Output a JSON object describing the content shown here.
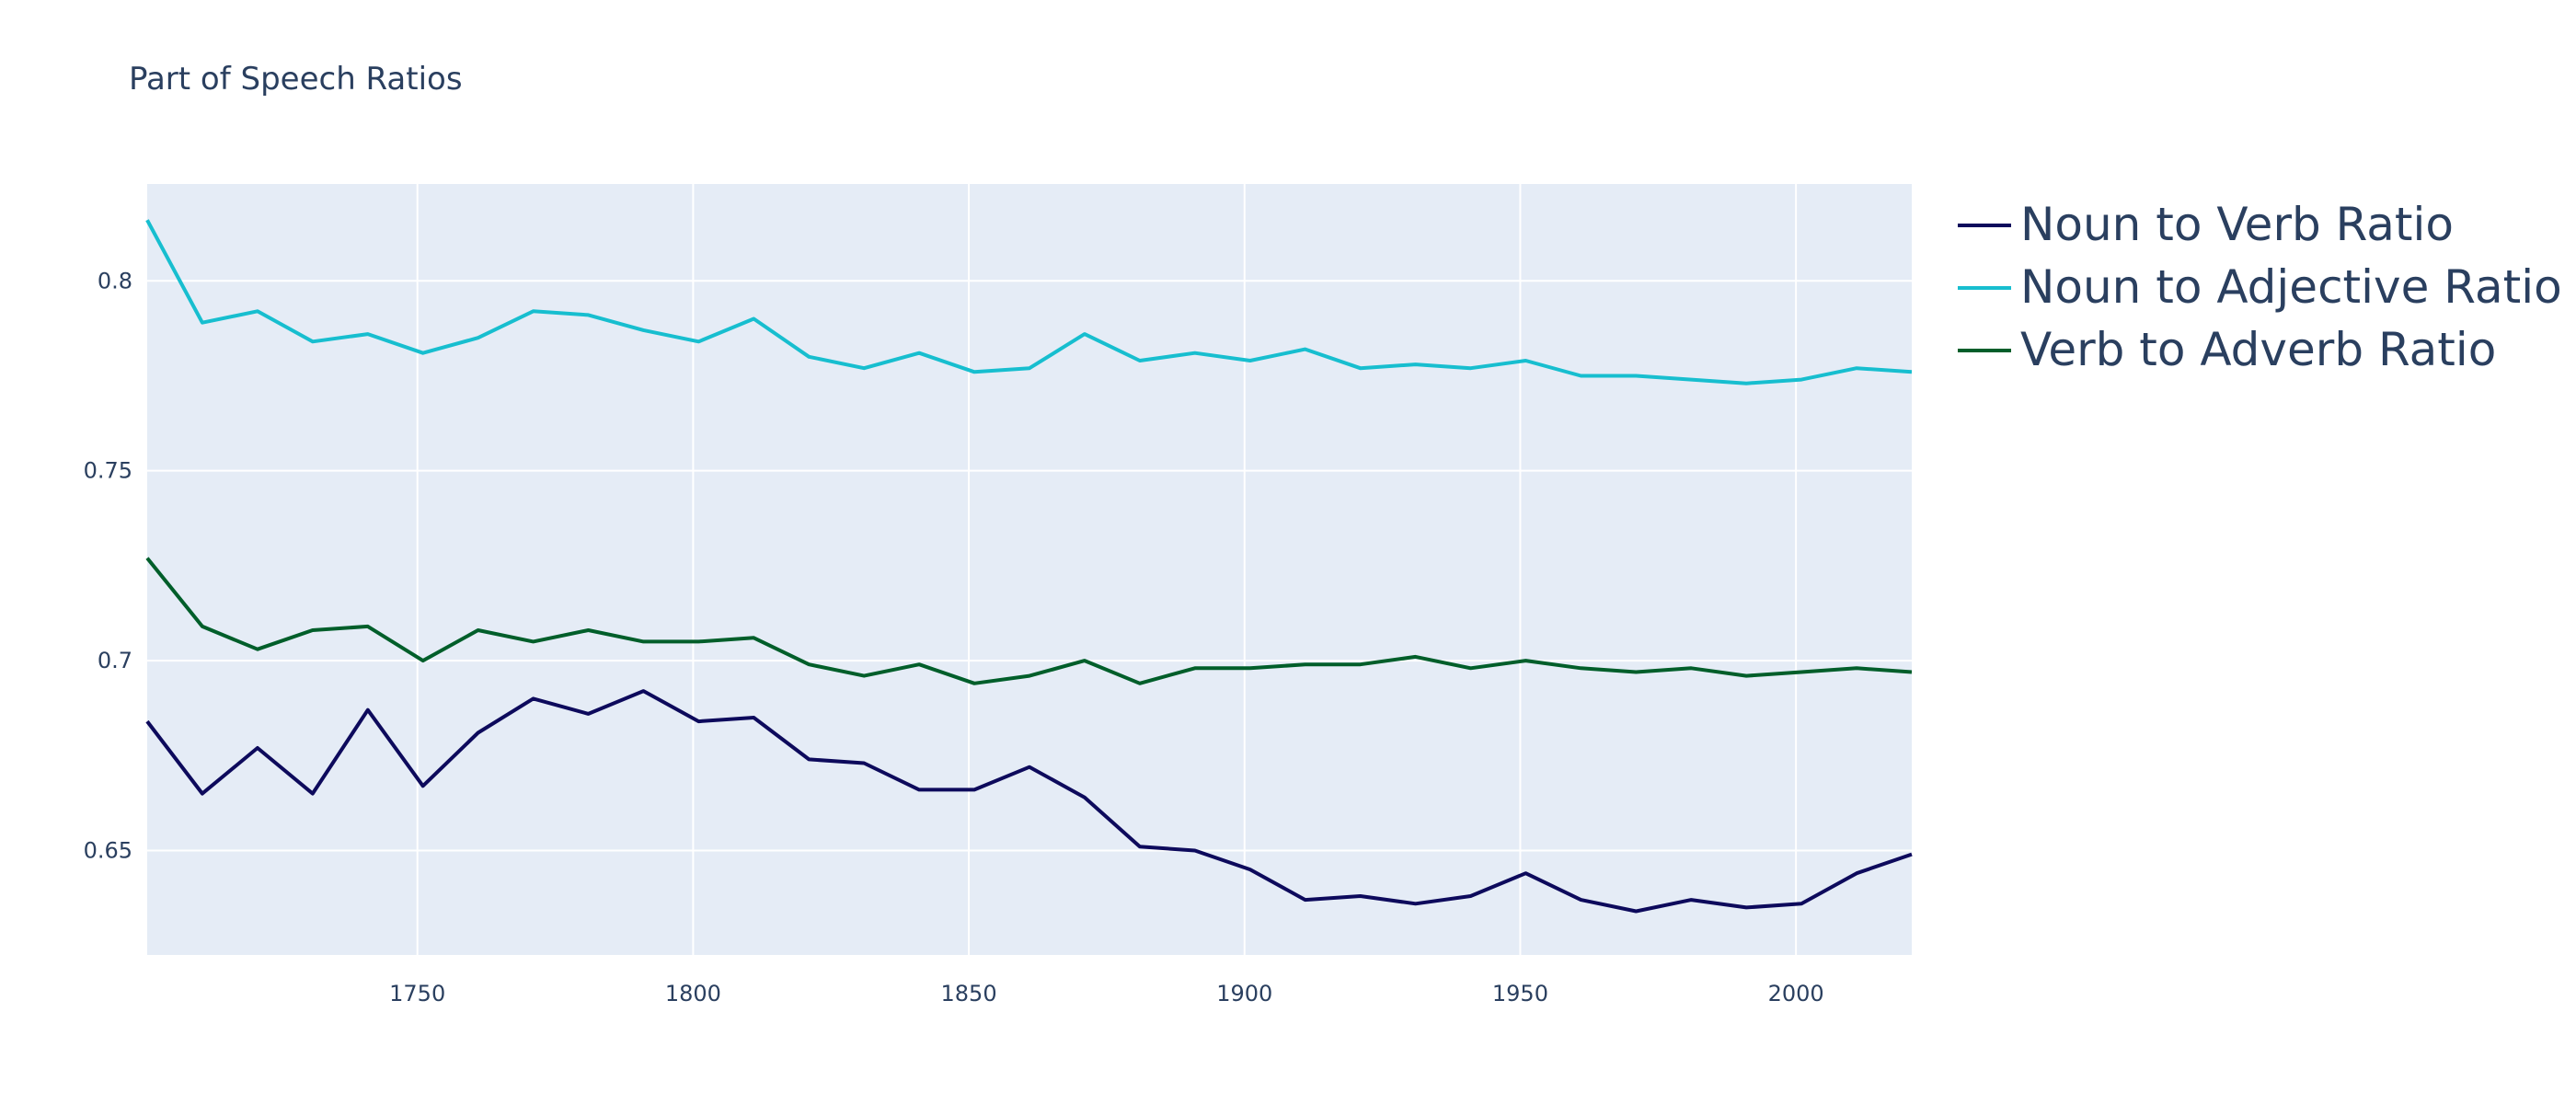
{
  "chart_data": {
    "type": "line",
    "title": "Part of Speech Ratios",
    "xlabel": "",
    "ylabel": "",
    "xlim": [
      1701,
      2021
    ],
    "ylim": [
      0.6225,
      0.8255
    ],
    "x_ticks": [
      1750,
      1800,
      1850,
      1900,
      1950,
      2000
    ],
    "y_ticks": [
      0.65,
      0.7,
      0.75,
      0.8
    ],
    "y_tick_labels": [
      "0.65",
      "0.7",
      "0.75",
      "0.8"
    ],
    "grid": true,
    "legend_position": "right",
    "x": [
      1701,
      1711,
      1721,
      1731,
      1741,
      1751,
      1761,
      1771,
      1781,
      1791,
      1801,
      1811,
      1821,
      1831,
      1841,
      1851,
      1861,
      1871,
      1881,
      1891,
      1901,
      1911,
      1921,
      1931,
      1941,
      1951,
      1961,
      1971,
      1981,
      1991,
      2001,
      2011,
      2021
    ],
    "series": [
      {
        "name": "Noun to Verb Ratio",
        "color": "#0d0a5c",
        "values": [
          0.684,
          0.665,
          0.677,
          0.665,
          0.687,
          0.667,
          0.681,
          0.69,
          0.686,
          0.692,
          0.684,
          0.685,
          0.674,
          0.673,
          0.666,
          0.666,
          0.672,
          0.664,
          0.651,
          0.65,
          0.645,
          0.637,
          0.638,
          0.636,
          0.638,
          0.644,
          0.637,
          0.634,
          0.637,
          0.635,
          0.636,
          0.644,
          0.649
        ]
      },
      {
        "name": "Noun to Adjective Ratio",
        "color": "#17becf",
        "values": [
          0.816,
          0.789,
          0.792,
          0.784,
          0.786,
          0.781,
          0.785,
          0.792,
          0.791,
          0.787,
          0.784,
          0.79,
          0.78,
          0.777,
          0.781,
          0.776,
          0.777,
          0.786,
          0.779,
          0.781,
          0.779,
          0.782,
          0.777,
          0.778,
          0.777,
          0.779,
          0.775,
          0.775,
          0.774,
          0.773,
          0.774,
          0.777,
          0.776
        ]
      },
      {
        "name": "Verb to Adverb Ratio",
        "color": "#005e2a",
        "values": [
          0.727,
          0.709,
          0.703,
          0.708,
          0.709,
          0.7,
          0.708,
          0.705,
          0.708,
          0.705,
          0.705,
          0.706,
          0.699,
          0.696,
          0.699,
          0.694,
          0.696,
          0.7,
          0.694,
          0.698,
          0.698,
          0.699,
          0.699,
          0.701,
          0.698,
          0.7,
          0.698,
          0.697,
          0.698,
          0.696,
          0.697,
          0.698,
          0.697
        ]
      }
    ]
  }
}
